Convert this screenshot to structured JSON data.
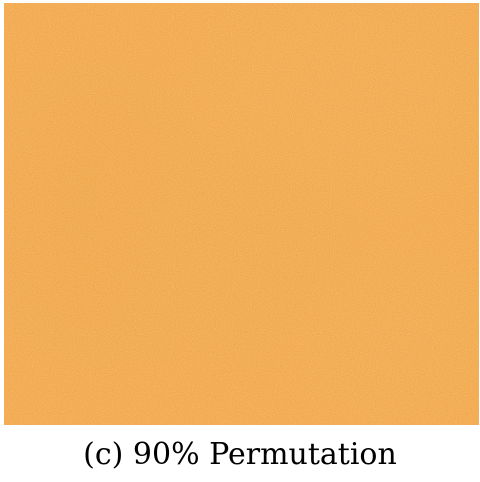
{
  "figure": {
    "caption": "(c) 90% Permutation",
    "image": {
      "base_color": "#f3a64b",
      "noise_color": "#e28d2b"
    }
  }
}
